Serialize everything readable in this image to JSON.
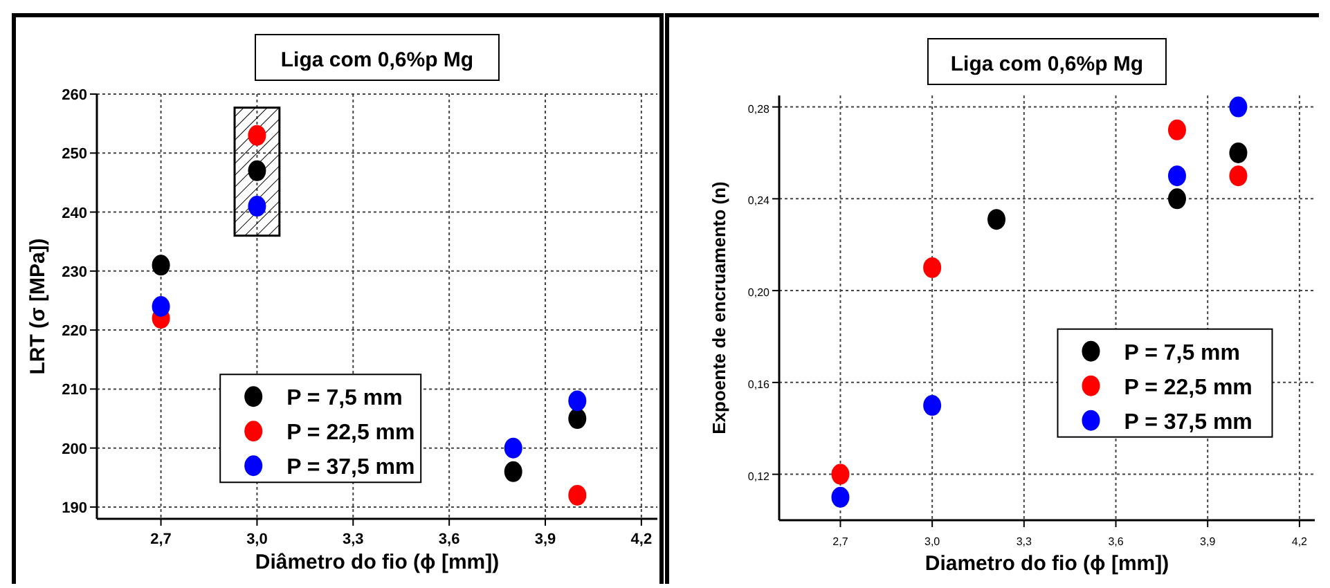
{
  "chart_data": [
    {
      "type": "scatter",
      "title": "Liga com 0,6%p Mg",
      "xlabel": "Diâmetro do fio (ϕ [mm])",
      "ylabel": "LRT (σ [MPa])",
      "xlim": [
        2.5,
        4.25
      ],
      "xticks": [
        {
          "value": 2.7,
          "label": "2,7"
        },
        {
          "value": 3.0,
          "label": "3,0"
        },
        {
          "value": 3.3,
          "label": "3,3"
        },
        {
          "value": 3.6,
          "label": "3,6"
        },
        {
          "value": 3.9,
          "label": "3,9"
        },
        {
          "value": 4.2,
          "label": "4,2"
        }
      ],
      "ylim": [
        188,
        260
      ],
      "yticks": [
        190,
        200,
        210,
        220,
        230,
        240,
        250,
        260
      ],
      "grid": true,
      "legend": "bottom",
      "marker": "circle",
      "series": [
        {
          "name": "P = 7,5 mm",
          "color": "#000000",
          "x": [
            2.7,
            3.0,
            3.8,
            4.0
          ],
          "values": [
            231,
            247,
            196,
            205
          ]
        },
        {
          "name": "P = 22,5 mm",
          "color": "#ff0000",
          "x": [
            2.7,
            3.0,
            4.0
          ],
          "values": [
            222,
            253,
            192
          ]
        },
        {
          "name": "P = 37,5 mm",
          "color": "#0000ff",
          "x": [
            2.7,
            3.0,
            3.8,
            4.0
          ],
          "values": [
            224,
            241,
            200,
            208
          ]
        }
      ]
    },
    {
      "type": "scatter",
      "title": "Liga com 0,6%p Mg",
      "xlabel": "Diametro do fio (ϕ [mm])",
      "ylabel": "Expoente de encruamento (n)",
      "xlim": [
        2.5,
        4.25
      ],
      "xticks": [
        {
          "value": 2.7,
          "label": "2,7"
        },
        {
          "value": 3.0,
          "label": "3,0"
        },
        {
          "value": 3.3,
          "label": "3,3"
        },
        {
          "value": 3.6,
          "label": "3,6"
        },
        {
          "value": 3.9,
          "label": "3,9"
        },
        {
          "value": 4.2,
          "label": "4,2"
        }
      ],
      "ylim": [
        0.1,
        0.285
      ],
      "yticks": [
        {
          "value": 0.12,
          "label": "0,12"
        },
        {
          "value": 0.16,
          "label": "0,16"
        },
        {
          "value": 0.2,
          "label": "0,20"
        },
        {
          "value": 0.24,
          "label": "0,24"
        },
        {
          "value": 0.28,
          "label": "0,28"
        }
      ],
      "grid": true,
      "legend": "bottom right",
      "marker": "circle",
      "series": [
        {
          "name": "P = 7,5 mm",
          "color": "#000000",
          "x": [
            3.21,
            3.8,
            4.0
          ],
          "values": [
            0.231,
            0.24,
            0.26
          ]
        },
        {
          "name": "P = 22,5 mm",
          "color": "#ff0000",
          "x": [
            2.7,
            3.0,
            3.8,
            4.0
          ],
          "values": [
            0.12,
            0.21,
            0.27,
            0.25
          ]
        },
        {
          "name": "P = 37,5 mm",
          "color": "#0000ff",
          "x": [
            2.7,
            3.0,
            3.8,
            4.0
          ],
          "values": [
            0.11,
            0.15,
            0.25,
            0.28
          ]
        }
      ]
    }
  ]
}
